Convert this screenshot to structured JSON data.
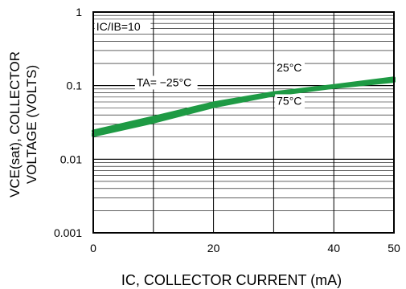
{
  "chart_data": {
    "type": "line",
    "title": "",
    "xlabel": "IC, COLLECTOR CURRENT (mA)",
    "ylabel_line1": "VCE(sat), COLLECTOR",
    "ylabel_line2": "VOLTAGE (VOLTS)",
    "xlim": [
      0,
      50
    ],
    "ylim": [
      0.001,
      1
    ],
    "yscale": "log",
    "grid": true,
    "x_ticks": [
      {
        "value": 0,
        "label": "0"
      },
      {
        "value": 20,
        "label": "20"
      },
      {
        "value": 40,
        "label": "40"
      },
      {
        "value": 50,
        "label": "50"
      }
    ],
    "y_ticks": [
      {
        "value": 1,
        "label": "1"
      },
      {
        "value": 0.1,
        "label": "0.1"
      },
      {
        "value": 0.01,
        "label": "0.01"
      },
      {
        "value": 0.001,
        "label": "0.001"
      }
    ],
    "line_color": "#1e9a44",
    "series": [
      {
        "x": [
          0,
          10,
          20,
          30,
          40,
          50
        ],
        "y": [
          0.021,
          0.032,
          0.052,
          0.075,
          0.095,
          0.115
        ]
      },
      {
        "x": [
          0,
          10,
          20,
          30,
          40,
          50
        ],
        "y": [
          0.024,
          0.037,
          0.058,
          0.08,
          0.1,
          0.127
        ]
      },
      {
        "x": [
          0,
          10,
          20,
          30,
          40,
          50
        ],
        "y": [
          0.022,
          0.034,
          0.054,
          0.077,
          0.098,
          0.121
        ]
      }
    ],
    "annotations": [
      {
        "text": "IC/IB=10",
        "x": 0.5,
        "y": 0.56
      },
      {
        "text": "25°C",
        "x": 30.5,
        "y": 0.155
      },
      {
        "text": "TA= −25°C",
        "x": 7.2,
        "y": 0.098
      },
      {
        "text": "75°C",
        "x": 30.5,
        "y": 0.055
      }
    ]
  }
}
